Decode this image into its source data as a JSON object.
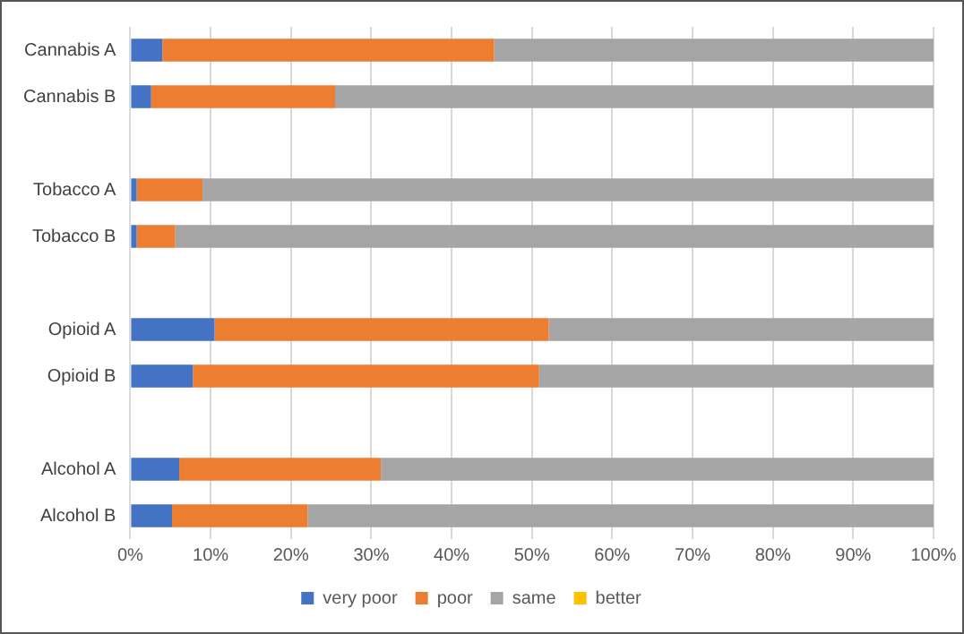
{
  "chart_data": {
    "type": "bar",
    "orientation": "horizontal",
    "stacked": true,
    "categories": [
      "Cannabis A",
      "Cannabis B",
      null,
      "Tobacco A",
      "Tobacco B",
      null,
      "Opioid A",
      "Opioid B",
      null,
      "Alcohol A",
      "Alcohol B"
    ],
    "series": [
      {
        "name": "very poor",
        "color": "#4472c4",
        "values": [
          4,
          2.6,
          null,
          0.8,
          0.8,
          null,
          10.5,
          7.8,
          null,
          6.1,
          5.2
        ]
      },
      {
        "name": "poor",
        "color": "#ed7d31",
        "values": [
          41.3,
          22.9,
          null,
          8.2,
          4.8,
          null,
          41.6,
          43.1,
          null,
          25.1,
          16.9
        ]
      },
      {
        "name": "same",
        "color": "#a5a5a5",
        "values": [
          54.7,
          74.5,
          null,
          91,
          94.4,
          null,
          47.9,
          49.1,
          null,
          68.8,
          77.9
        ]
      },
      {
        "name": "better",
        "color": "#ffc000",
        "values": [
          0,
          0,
          null,
          0,
          0,
          null,
          0,
          0,
          null,
          0,
          0
        ]
      }
    ],
    "xlim": [
      0,
      100
    ],
    "xticks": [
      {
        "value": 0,
        "label": "0%"
      },
      {
        "value": 10,
        "label": "10%"
      },
      {
        "value": 20,
        "label": "20%"
      },
      {
        "value": 30,
        "label": "30%"
      },
      {
        "value": 40,
        "label": "40%"
      },
      {
        "value": 50,
        "label": "50%"
      },
      {
        "value": 60,
        "label": "60%"
      },
      {
        "value": 70,
        "label": "70%"
      },
      {
        "value": 80,
        "label": "80%"
      },
      {
        "value": 90,
        "label": "90%"
      },
      {
        "value": 100,
        "label": "100%"
      }
    ],
    "grid": "x",
    "legend": "bottom"
  }
}
